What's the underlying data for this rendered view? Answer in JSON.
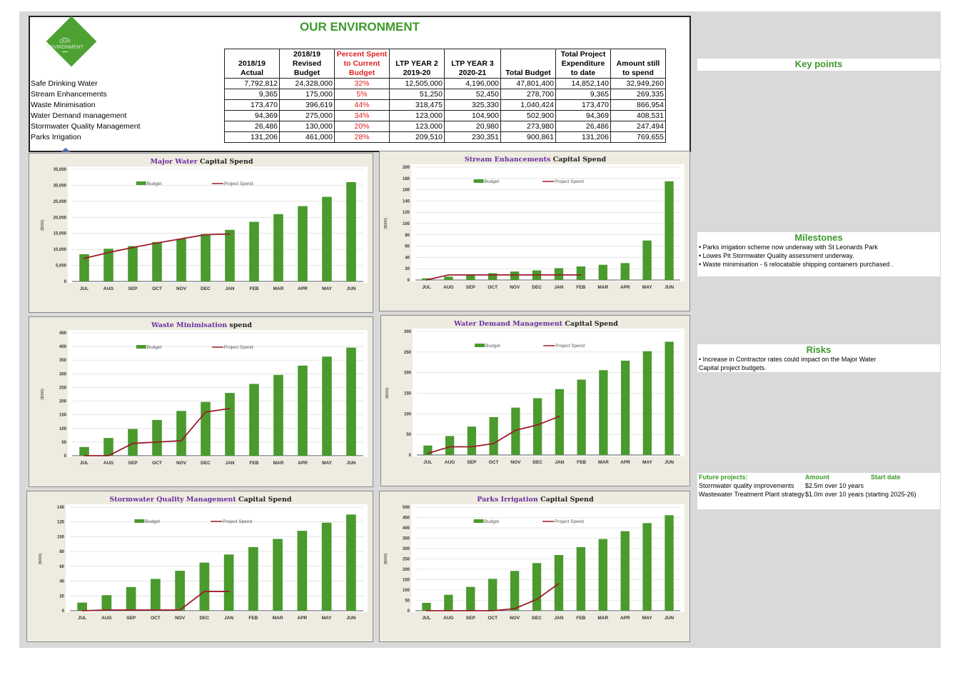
{
  "title": "OUR ENVIRONMENT",
  "logo_text": [
    "OUR",
    "ENVIRONMENT"
  ],
  "table": {
    "headers": [
      "2018/19 Actual",
      "2018/19 Revised Budget",
      "Percent Spent to Current Budget",
      "LTP YEAR 2 2019-20",
      "LTP YEAR 3 2020-21",
      "Total Budget",
      "Total Project Expenditure to date",
      "Amount still to spend"
    ],
    "rows": [
      {
        "label": "Safe Drinking Water",
        "values": [
          "7,792,812",
          "24,328,000",
          "32%",
          "12,505,000",
          "4,196,000",
          "47,801,400",
          "14,852,140",
          "32,949,260"
        ]
      },
      {
        "label": "Stream Enhancements",
        "values": [
          "9,365",
          "175,000",
          "5%",
          "51,250",
          "52,450",
          "278,700",
          "9,365",
          "269,335"
        ]
      },
      {
        "label": "Waste Minimisation",
        "values": [
          "173,470",
          "396,619",
          "44%",
          "318,475",
          "325,330",
          "1,040,424",
          "173,470",
          "866,954"
        ]
      },
      {
        "label": "Water Demand management",
        "values": [
          "94,369",
          "275,000",
          "34%",
          "123,000",
          "104,900",
          "502,900",
          "94,369",
          "408,531"
        ]
      },
      {
        "label": "Stormwater Quality Management",
        "values": [
          "26,486",
          "130,000",
          "20%",
          "123,000",
          "20,980",
          "273,980",
          "26,486",
          "247,494"
        ]
      },
      {
        "label": "Parks Irrigation",
        "values": [
          "131,206",
          "461,000",
          "28%",
          "209,510",
          "230,351",
          "900,861",
          "131,206",
          "769,655"
        ]
      }
    ]
  },
  "colors": {
    "budget": "#4a9a2e",
    "spend": "#9b1c2a",
    "title_purple": "#6b2fa0",
    "accent_green": "#3c9a2a"
  },
  "chart_data": [
    {
      "type": "bar",
      "title_highlight": "Major Water",
      "title_rest": " Capital Spend",
      "ylabel": "($000)",
      "legend": [
        "Budget",
        "Project Spend"
      ],
      "categories": [
        "JUL",
        "AUG",
        "SEP",
        "OCT",
        "NOV",
        "DEC",
        "JAN",
        "FEB",
        "MAR",
        "APR",
        "MAY",
        "JUN"
      ],
      "ylim": [
        0,
        35000
      ],
      "yticks": [
        "0",
        "5,000",
        "10,000",
        "15,000",
        "20,000",
        "25,000",
        "30,000",
        "35,000"
      ],
      "series": [
        {
          "name": "Budget",
          "values": [
            8500,
            10200,
            11000,
            12300,
            13300,
            14800,
            16100,
            18600,
            21000,
            23500,
            26400,
            31000
          ]
        },
        {
          "name": "Project Spend",
          "values": [
            7200,
            9000,
            10600,
            12000,
            13300,
            14600,
            14800,
            null,
            null,
            null,
            null,
            null
          ]
        }
      ]
    },
    {
      "type": "bar",
      "title_highlight": "Stream Enhancements",
      "title_rest": " Capital Spend",
      "ylabel": "($000)",
      "legend": [
        "Budget",
        "Project Spend"
      ],
      "categories": [
        "JUL",
        "AUG",
        "SEP",
        "OCT",
        "NOV",
        "DEC",
        "JAN",
        "FEB",
        "MAR",
        "APR",
        "MAY",
        "JUN"
      ],
      "ylim": [
        0,
        200
      ],
      "yticks": [
        "0",
        "20",
        "40",
        "60",
        "80",
        "100",
        "120",
        "140",
        "160",
        "180",
        "200"
      ],
      "series": [
        {
          "name": "Budget",
          "values": [
            3,
            6,
            10,
            12,
            15,
            17,
            21,
            24,
            27,
            30,
            70,
            175
          ]
        },
        {
          "name": "Project Spend",
          "values": [
            0,
            9,
            9,
            9,
            9,
            9,
            9,
            9,
            null,
            null,
            null,
            null
          ]
        }
      ]
    },
    {
      "type": "bar",
      "title_highlight": "Waste Minimisation",
      "title_rest": " spend",
      "ylabel": "($000)",
      "legend": [
        "Budget",
        "Project Spend"
      ],
      "categories": [
        "JUL",
        "AUG",
        "SEP",
        "OCT",
        "NOV",
        "DEC",
        "JAN",
        "FEB",
        "MAR",
        "APR",
        "MAY",
        "JUN"
      ],
      "ylim": [
        0,
        450
      ],
      "yticks": [
        "0",
        "50",
        "100",
        "150",
        "200",
        "250",
        "300",
        "350",
        "400",
        "450"
      ],
      "series": [
        {
          "name": "Budget",
          "values": [
            32,
            65,
            98,
            131,
            164,
            197,
            230,
            263,
            296,
            330,
            363,
            396
          ]
        },
        {
          "name": "Project Spend",
          "values": [
            0,
            0,
            45,
            50,
            55,
            160,
            173,
            null,
            null,
            null,
            null,
            null
          ]
        }
      ]
    },
    {
      "type": "bar",
      "title_highlight": "Water Demand Management",
      "title_rest": " Capital Spend",
      "ylabel": "($000)",
      "legend": [
        "Budget",
        "Project Spend"
      ],
      "categories": [
        "JUL",
        "AUG",
        "SEP",
        "OCT",
        "NOV",
        "DEC",
        "JAN",
        "FEB",
        "MAR",
        "APR",
        "MAY",
        "JUN"
      ],
      "ylim": [
        0,
        300
      ],
      "yticks": [
        "0",
        "50",
        "100",
        "150",
        "200",
        "250",
        "300"
      ],
      "series": [
        {
          "name": "Budget",
          "values": [
            23,
            46,
            69,
            92,
            115,
            138,
            160,
            183,
            206,
            229,
            252,
            275
          ]
        },
        {
          "name": "Project Spend",
          "values": [
            4,
            20,
            20,
            28,
            60,
            73,
            94,
            null,
            null,
            null,
            null,
            null
          ]
        }
      ]
    },
    {
      "type": "bar",
      "title_highlight": "Stormwater Quality Management",
      "title_rest": " Capital Spend",
      "ylabel": "($000)",
      "legend": [
        "Budget",
        "Project Spend"
      ],
      "categories": [
        "JUL",
        "AUG",
        "SEP",
        "OCT",
        "NOV",
        "DEC",
        "JAN",
        "FEB",
        "MAR",
        "APR",
        "MAY",
        "JUN"
      ],
      "ylim": [
        0,
        140
      ],
      "yticks": [
        "0",
        "20",
        "40",
        "60",
        "80",
        "100",
        "120",
        "140"
      ],
      "series": [
        {
          "name": "Budget",
          "values": [
            11,
            21,
            32,
            43,
            54,
            65,
            76,
            86,
            97,
            108,
            119,
            130
          ]
        },
        {
          "name": "Project Spend",
          "values": [
            0,
            1,
            1,
            1,
            1,
            26,
            26,
            null,
            null,
            null,
            null,
            null
          ]
        }
      ]
    },
    {
      "type": "bar",
      "title_highlight": "Parks Irrigation",
      "title_rest": " Capital Spend",
      "ylabel": "($000)",
      "legend": [
        "Budget",
        "Project Spend"
      ],
      "categories": [
        "JUL",
        "AUG",
        "SEP",
        "OCT",
        "NOV",
        "DEC",
        "JAN",
        "FEB",
        "MAR",
        "APR",
        "MAY",
        "JUN"
      ],
      "ylim": [
        0,
        500
      ],
      "yticks": [
        "0",
        "50",
        "100",
        "150",
        "200",
        "250",
        "300",
        "350",
        "400",
        "450",
        "500"
      ],
      "series": [
        {
          "name": "Budget",
          "values": [
            38,
            77,
            115,
            154,
            192,
            230,
            269,
            307,
            346,
            384,
            423,
            461
          ]
        },
        {
          "name": "Project Spend",
          "values": [
            0,
            0,
            0,
            0,
            10,
            55,
            131,
            null,
            null,
            null,
            null,
            null
          ]
        }
      ]
    }
  ],
  "key_points": {
    "heading": "Key points"
  },
  "milestones": {
    "heading": "Milestones",
    "items": [
      "• Parks irrigation scheme now underway with St Leonards Park",
      "• Lowes Pit Stormwater Quality assessment underway.",
      "• Waste minimisation - 6 relocatable shipping containers purchased ."
    ]
  },
  "risks": {
    "heading": "Risks",
    "items": [
      "• Increase in Contractor rates could impact on the Major Water",
      "Capital project budgets."
    ]
  },
  "future": {
    "headers": [
      "Future projects:",
      "Amount",
      "Start date"
    ],
    "rows": [
      [
        "Stormwater quality improvements",
        "$2.5m over 10 years",
        ""
      ],
      [
        "Wastewater Treatment Plant strategy",
        "$1.0m over 10 years (starting 2025-26)",
        ""
      ]
    ]
  }
}
